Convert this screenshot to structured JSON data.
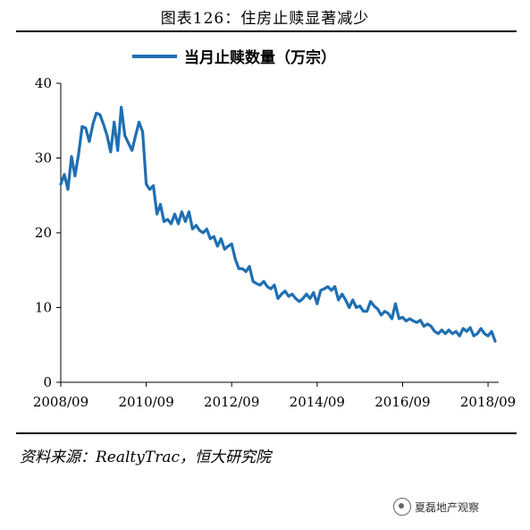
{
  "figure": {
    "title": "图表126：住房止赎显著减少",
    "source": "资料来源：RealtyTrac，恒大研究院",
    "watermark": "夏磊地产观察"
  },
  "colors": {
    "series": "#1f6fb2",
    "axis": "#000000"
  },
  "chart_data": {
    "type": "line",
    "title": "",
    "xlabel": "",
    "ylabel": "",
    "ylim": [
      0,
      40
    ],
    "yticks": [
      0,
      10,
      20,
      30,
      40
    ],
    "xticks": [
      "2008/09",
      "2010/09",
      "2012/09",
      "2014/09",
      "2016/09",
      "2018/09"
    ],
    "xrange": [
      "2008/09",
      "2018/12"
    ],
    "legend": "top-center",
    "grid": false,
    "series": [
      {
        "name": "当月止赎数量（万宗）",
        "x": [
          "2008/09",
          "2008/10",
          "2008/11",
          "2008/12",
          "2009/01",
          "2009/02",
          "2009/03",
          "2009/04",
          "2009/05",
          "2009/06",
          "2009/07",
          "2009/08",
          "2009/09",
          "2009/10",
          "2009/11",
          "2009/12",
          "2010/01",
          "2010/02",
          "2010/03",
          "2010/04",
          "2010/05",
          "2010/06",
          "2010/07",
          "2010/08",
          "2010/09",
          "2010/10",
          "2010/11",
          "2010/12",
          "2011/01",
          "2011/02",
          "2011/03",
          "2011/04",
          "2011/05",
          "2011/06",
          "2011/07",
          "2011/08",
          "2011/09",
          "2011/10",
          "2011/11",
          "2011/12",
          "2012/01",
          "2012/02",
          "2012/03",
          "2012/04",
          "2012/05",
          "2012/06",
          "2012/07",
          "2012/08",
          "2012/09",
          "2012/10",
          "2012/11",
          "2012/12",
          "2013/01",
          "2013/02",
          "2013/03",
          "2013/04",
          "2013/05",
          "2013/06",
          "2013/07",
          "2013/08",
          "2013/09",
          "2013/10",
          "2013/11",
          "2013/12",
          "2014/01",
          "2014/02",
          "2014/03",
          "2014/04",
          "2014/05",
          "2014/06",
          "2014/07",
          "2014/08",
          "2014/09",
          "2014/10",
          "2014/11",
          "2014/12",
          "2015/01",
          "2015/02",
          "2015/03",
          "2015/04",
          "2015/05",
          "2015/06",
          "2015/07",
          "2015/08",
          "2015/09",
          "2015/10",
          "2015/11",
          "2015/12",
          "2016/01",
          "2016/02",
          "2016/03",
          "2016/04",
          "2016/05",
          "2016/06",
          "2016/07",
          "2016/08",
          "2016/09",
          "2016/10",
          "2016/11",
          "2016/12",
          "2017/01",
          "2017/02",
          "2017/03",
          "2017/04",
          "2017/05",
          "2017/06",
          "2017/07",
          "2017/08",
          "2017/09",
          "2017/10",
          "2017/11",
          "2017/12",
          "2018/01",
          "2018/02",
          "2018/03",
          "2018/04",
          "2018/05",
          "2018/06",
          "2018/07",
          "2018/08",
          "2018/09",
          "2018/10",
          "2018/11"
        ],
        "values": [
          26.5,
          27.8,
          25.8,
          30.2,
          27.6,
          30.5,
          34.2,
          34.0,
          32.2,
          34.5,
          36.0,
          35.8,
          34.5,
          33.0,
          30.8,
          34.8,
          31.0,
          36.8,
          33.0,
          32.0,
          31.0,
          33.0,
          34.8,
          33.5,
          26.5,
          25.8,
          26.3,
          22.5,
          23.8,
          21.5,
          21.8,
          21.2,
          22.5,
          21.2,
          22.8,
          21.5,
          22.8,
          20.5,
          21.0,
          20.3,
          20.0,
          20.5,
          19.2,
          19.5,
          18.2,
          19.2,
          17.8,
          18.2,
          18.5,
          16.5,
          15.2,
          15.2,
          14.8,
          15.5,
          13.5,
          13.2,
          13.0,
          13.5,
          12.8,
          12.5,
          13.0,
          11.2,
          11.8,
          12.2,
          11.5,
          11.8,
          11.2,
          10.8,
          11.2,
          11.8,
          11.2,
          12.0,
          10.5,
          12.3,
          12.5,
          12.8,
          12.3,
          12.8,
          11.0,
          11.8,
          11.0,
          10.0,
          11.0,
          10.0,
          10.2,
          9.5,
          9.5,
          10.8,
          10.2,
          9.8,
          9.0,
          9.5,
          9.2,
          8.5,
          10.5,
          8.5,
          8.7,
          8.2,
          8.5,
          8.2,
          8.0,
          8.3,
          7.5,
          7.8,
          7.5,
          6.8,
          6.5,
          7.0,
          6.5,
          7.0,
          6.5,
          6.8,
          6.2,
          7.2,
          6.8,
          7.3,
          6.2,
          6.5,
          7.2,
          6.5,
          6.2,
          6.8,
          5.5
        ]
      }
    ]
  }
}
